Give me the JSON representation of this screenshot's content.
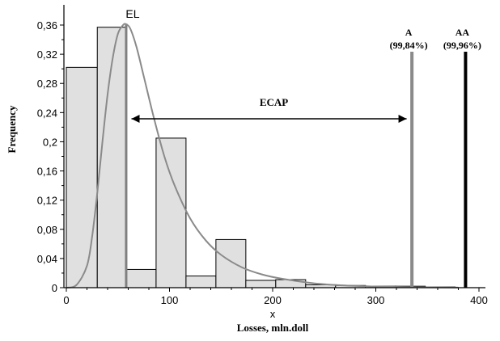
{
  "chart_data": {
    "type": "bar",
    "ylabel": "Frequency",
    "xlabel_top": "x",
    "xlabel_bottom": "Losses, mln.doll",
    "xlim": [
      0,
      400
    ],
    "ylim": [
      0,
      0.37
    ],
    "x_ticks": [
      0,
      100,
      200,
      300,
      400
    ],
    "y_ticks": [
      0,
      0.04,
      0.08,
      0.12,
      0.16,
      0.2,
      0.24,
      0.28,
      0.32,
      0.36
    ],
    "x_tick_labels": [
      "0",
      "100",
      "200",
      "300",
      "400"
    ],
    "y_tick_labels": [
      "0",
      "0,04",
      "0,08",
      "0,12",
      "0,16",
      "0,2",
      "0,24",
      "0,28",
      "0,32",
      "0,36"
    ],
    "bins": [
      {
        "x0": 0,
        "x1": 30,
        "value": 0.302
      },
      {
        "x0": 30,
        "x1": 58,
        "value": 0.357
      },
      {
        "x0": 58,
        "x1": 87,
        "value": 0.025
      },
      {
        "x0": 87,
        "x1": 116,
        "value": 0.205
      },
      {
        "x0": 116,
        "x1": 145,
        "value": 0.016
      },
      {
        "x0": 145,
        "x1": 174,
        "value": 0.066
      },
      {
        "x0": 174,
        "x1": 203,
        "value": 0.01
      },
      {
        "x0": 203,
        "x1": 232,
        "value": 0.011
      },
      {
        "x0": 232,
        "x1": 261,
        "value": 0.004
      },
      {
        "x0": 261,
        "x1": 290,
        "value": 0.003
      },
      {
        "x0": 290,
        "x1": 319,
        "value": 0.002
      },
      {
        "x0": 319,
        "x1": 348,
        "value": 0.002
      },
      {
        "x0": 348,
        "x1": 377,
        "value": 0.001
      }
    ],
    "density_curve": {
      "x": [
        0,
        10,
        20,
        25,
        30,
        35,
        40,
        45,
        50,
        55,
        58,
        62,
        68,
        75,
        85,
        95,
        105,
        120,
        135,
        150,
        170,
        190,
        210,
        240,
        270,
        300,
        340,
        380
      ],
      "y": [
        0,
        0.004,
        0.03,
        0.07,
        0.13,
        0.2,
        0.265,
        0.315,
        0.348,
        0.36,
        0.361,
        0.355,
        0.33,
        0.29,
        0.232,
        0.18,
        0.14,
        0.095,
        0.065,
        0.045,
        0.028,
        0.018,
        0.012,
        0.006,
        0.003,
        0.0015,
        0.0006,
        0.0002
      ]
    },
    "markers": [
      {
        "id": "el",
        "x": 58,
        "label": "EL",
        "sublabel": "",
        "color": "#808080"
      },
      {
        "id": "a",
        "x": 335,
        "label": "A",
        "sublabel": "(99,84%)",
        "color": "#8a8a8a"
      },
      {
        "id": "aa",
        "x": 387,
        "label": "AA",
        "sublabel": "(99,96%)",
        "color": "#000000"
      }
    ],
    "ecap": {
      "label": "ECAP",
      "x_start": 60,
      "x_end": 333,
      "y": 0.228
    },
    "colors": {
      "bar_fill": "#e0e0e0",
      "bar_stroke": "#000000",
      "curve": "#8a8a8a"
    }
  }
}
